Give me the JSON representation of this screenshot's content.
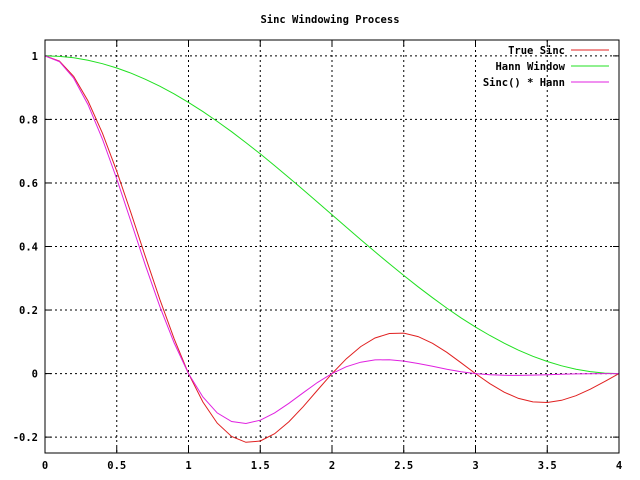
{
  "chart_data": {
    "type": "line",
    "title": "Sinc Windowing Process",
    "xlabel": "",
    "ylabel": "",
    "xlim": [
      0,
      4
    ],
    "ylim": [
      -0.25,
      1.05
    ],
    "grid": true,
    "legend_position": "top-right",
    "x_ticks": [
      "0",
      "0.5",
      "1",
      "1.5",
      "2",
      "2.5",
      "3",
      "3.5",
      "4"
    ],
    "x_tick_values": [
      0,
      0.5,
      1,
      1.5,
      2,
      2.5,
      3,
      3.5,
      4
    ],
    "y_ticks": [
      "1",
      "0.8",
      "0.6",
      "0.4",
      "0.2",
      "0",
      "-0.2"
    ],
    "y_tick_values": [
      1,
      0.8,
      0.6,
      0.4,
      0.2,
      0,
      -0.2
    ],
    "x": [
      0,
      0.1,
      0.2,
      0.3,
      0.4,
      0.5,
      0.6,
      0.7,
      0.8,
      0.9,
      1.0,
      1.1,
      1.2,
      1.3,
      1.4,
      1.5,
      1.6,
      1.7,
      1.8,
      1.9,
      2.0,
      2.1,
      2.2,
      2.3,
      2.4,
      2.5,
      2.6,
      2.7,
      2.8,
      2.9,
      3.0,
      3.1,
      3.2,
      3.3,
      3.4,
      3.5,
      3.6,
      3.7,
      3.8,
      3.9,
      4.0
    ],
    "series": [
      {
        "name": "True Sinc",
        "color": "#e02020",
        "values": [
          1,
          0.98363,
          0.93549,
          0.85839,
          0.75683,
          0.63662,
          0.50455,
          0.36788,
          0.23387,
          0.10929,
          0,
          -0.08942,
          -0.15592,
          -0.19809,
          -0.21624,
          -0.21221,
          -0.18921,
          -0.15148,
          -0.10394,
          -0.05177,
          0,
          0.04684,
          0.08504,
          0.11196,
          0.12614,
          0.12732,
          0.11643,
          0.09538,
          0.06682,
          0.03392,
          0,
          -0.03173,
          -0.05847,
          -0.07804,
          -0.08904,
          -0.09095,
          -0.08409,
          -0.0696,
          -0.04924,
          -0.02522,
          0
        ]
      },
      {
        "name": "Hann Window",
        "color": "#20e020",
        "values": [
          1,
          0.99846,
          0.99384,
          0.98618,
          0.97553,
          0.96194,
          0.9455,
          0.92632,
          0.90451,
          0.8802,
          0.85355,
          0.82472,
          0.79389,
          0.76125,
          0.727,
          0.69134,
          0.65451,
          0.61672,
          0.57822,
          0.53923,
          0.5,
          0.46077,
          0.42178,
          0.38328,
          0.34549,
          0.30866,
          0.273,
          0.23875,
          0.20611,
          0.17528,
          0.14645,
          0.1198,
          0.09549,
          0.07368,
          0.0545,
          0.03806,
          0.02447,
          0.01382,
          0.00616,
          0.00154,
          0
        ]
      },
      {
        "name": "Sinc() * Hann",
        "color": "#e020e0",
        "values": [
          1,
          0.98212,
          0.92973,
          0.84653,
          0.73831,
          0.61239,
          0.47705,
          0.34077,
          0.21154,
          0.0962,
          0,
          -0.07375,
          -0.12378,
          -0.1508,
          -0.15721,
          -0.14671,
          -0.12384,
          -0.09342,
          -0.0601,
          -0.02792,
          0,
          0.02158,
          0.03587,
          0.04291,
          0.04358,
          0.0393,
          0.03179,
          0.02277,
          0.01377,
          0.00595,
          0,
          -0.0038,
          -0.00558,
          -0.00575,
          -0.00485,
          -0.00346,
          -0.00206,
          -0.00096,
          -0.0003,
          -4e-05,
          0
        ]
      }
    ]
  }
}
